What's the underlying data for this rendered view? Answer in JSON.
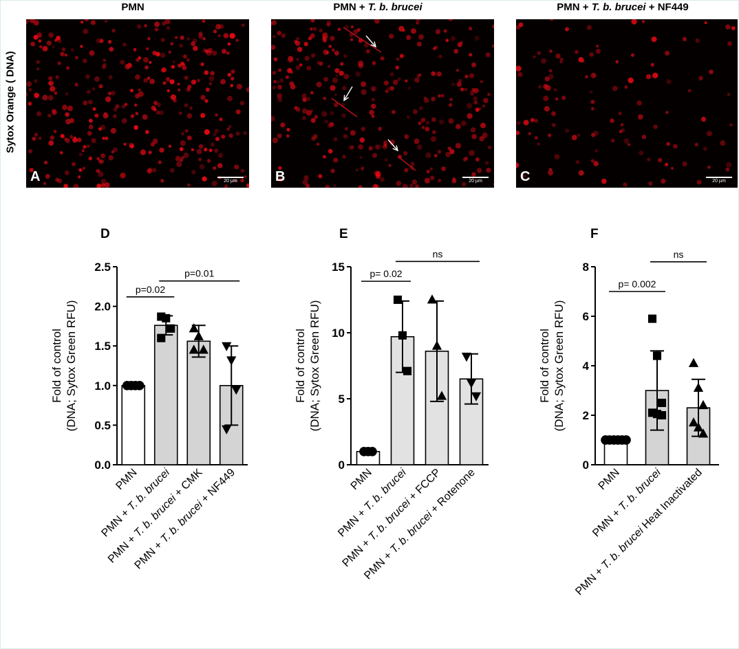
{
  "micrographs": {
    "side_label": "Sytox Orange ( DNA)",
    "scale_bar": "20 µm",
    "panels": [
      {
        "letter": "A",
        "title_parts": [
          {
            "t": "PMN",
            "i": false
          }
        ]
      },
      {
        "letter": "B",
        "title_parts": [
          {
            "t": "PMN + ",
            "i": false
          },
          {
            "t": "T. b. brucei",
            "i": true
          }
        ]
      },
      {
        "letter": "C",
        "title_parts": [
          {
            "t": "PMN + ",
            "i": false
          },
          {
            "t": "T. b. brucei",
            "i": true
          },
          {
            "t": " + NF449",
            "i": false
          }
        ]
      }
    ]
  },
  "chart_data": [
    {
      "letter": "D",
      "type": "bar",
      "ylabel": [
        "Fold of control",
        "(DNA; Sytox Green RFU)"
      ],
      "ylim": [
        0,
        2.5
      ],
      "yticks": [
        "0.0",
        "0.5",
        "1.0",
        "1.5",
        "2.0",
        "2.5"
      ],
      "categories": [
        [
          {
            "t": "PMN",
            "i": false
          }
        ],
        [
          {
            "t": "PMN + ",
            "i": false
          },
          {
            "t": "T. b. brucei",
            "i": true
          }
        ],
        [
          {
            "t": "PMN + ",
            "i": false
          },
          {
            "t": "T. b. brucei",
            "i": true
          },
          {
            "t": " + CMK",
            "i": false
          }
        ],
        [
          {
            "t": "PMN + ",
            "i": false
          },
          {
            "t": "T. b. brucei",
            "i": true
          },
          {
            "t": " + NF449",
            "i": false
          }
        ]
      ],
      "values": [
        1.0,
        1.76,
        1.56,
        1.0
      ],
      "errors": [
        0.0,
        0.12,
        0.2,
        0.5
      ],
      "markers": [
        "circle",
        "square",
        "triangle-up",
        "triangle-down"
      ],
      "points": [
        [
          1.0,
          1.0,
          1.0,
          1.0
        ],
        [
          1.87,
          1.85,
          1.72,
          1.6
        ],
        [
          1.72,
          1.62,
          1.45,
          1.45
        ],
        [
          1.5,
          1.32,
          0.95,
          0.45
        ]
      ],
      "fills": [
        "#ffffff",
        "#d4d4d4",
        "#d4d4d4",
        "#d4d4d4"
      ],
      "comparisons": [
        {
          "from": 0,
          "to": 1,
          "y": 2.12,
          "label": "p=0.02"
        },
        {
          "from": 1,
          "to": 3,
          "y": 2.32,
          "label": "p=0.01"
        }
      ]
    },
    {
      "letter": "E",
      "type": "bar",
      "ylabel": [
        "Fold of control",
        "(DNA; Sytox Green RFU)"
      ],
      "ylim": [
        0,
        15
      ],
      "yticks": [
        "0",
        "5",
        "10",
        "15"
      ],
      "categories": [
        [
          {
            "t": "PMN",
            "i": false
          }
        ],
        [
          {
            "t": "PMN + ",
            "i": false
          },
          {
            "t": "T. b. brucei",
            "i": true
          }
        ],
        [
          {
            "t": "PMN + ",
            "i": false
          },
          {
            "t": "T. b. brucei",
            "i": true
          },
          {
            "t": " + FCCP",
            "i": false
          }
        ],
        [
          {
            "t": "PMN + ",
            "i": false
          },
          {
            "t": "T. b. brucei",
            "i": true
          },
          {
            "t": " + Rotenone",
            "i": false
          }
        ]
      ],
      "values": [
        1.0,
        9.7,
        8.6,
        6.5
      ],
      "errors": [
        0.0,
        2.7,
        3.8,
        1.9
      ],
      "markers": [
        "circle",
        "square",
        "triangle-up",
        "triangle-down"
      ],
      "points": [
        [
          1.0,
          1.0,
          1.0
        ],
        [
          12.5,
          9.8,
          7.1
        ],
        [
          12.5,
          9.0,
          5.2
        ],
        [
          8.2,
          6.2,
          5.2
        ]
      ],
      "fills": [
        "#ffffff",
        "#e2e2e2",
        "#e2e2e2",
        "#e2e2e2"
      ],
      "comparisons": [
        {
          "from": 0,
          "to": 1,
          "y": 13.9,
          "label": "p= 0.02"
        },
        {
          "from": 1,
          "to": 3,
          "y": 15.4,
          "label": "ns"
        }
      ]
    },
    {
      "letter": "F",
      "type": "bar",
      "ylabel": [
        "Fold of control",
        "(DNA; Sytox Green RFU)"
      ],
      "ylim": [
        0,
        8
      ],
      "yticks": [
        "0",
        "2",
        "4",
        "6",
        "8"
      ],
      "categories": [
        [
          {
            "t": "PMN",
            "i": false
          }
        ],
        [
          {
            "t": "PMN + ",
            "i": false
          },
          {
            "t": "T. b. brucei",
            "i": true
          }
        ],
        [
          {
            "t": "PMN + ",
            "i": false
          },
          {
            "t": "T. b. brucei",
            "i": true
          },
          {
            "t": " Heat Inactivated",
            "i": false
          }
        ]
      ],
      "values": [
        1.0,
        3.0,
        2.3
      ],
      "errors": [
        0.0,
        1.6,
        1.15
      ],
      "markers": [
        "circle",
        "square",
        "triangle-up"
      ],
      "points": [
        [
          1.0,
          1.0,
          1.0,
          1.0,
          1.0,
          1.0
        ],
        [
          5.9,
          4.4,
          2.5,
          2.1,
          2.05,
          2.0
        ],
        [
          4.1,
          3.1,
          2.4,
          1.7,
          1.5,
          1.25
        ]
      ],
      "fills": [
        "#ffffff",
        "#d4d4d4",
        "#d4d4d4"
      ],
      "comparisons": [
        {
          "from": 0,
          "to": 1,
          "y": 7.0,
          "label": "p= 0.002"
        },
        {
          "from": 1,
          "to": 2,
          "y": 8.2,
          "label": "ns"
        }
      ]
    }
  ]
}
